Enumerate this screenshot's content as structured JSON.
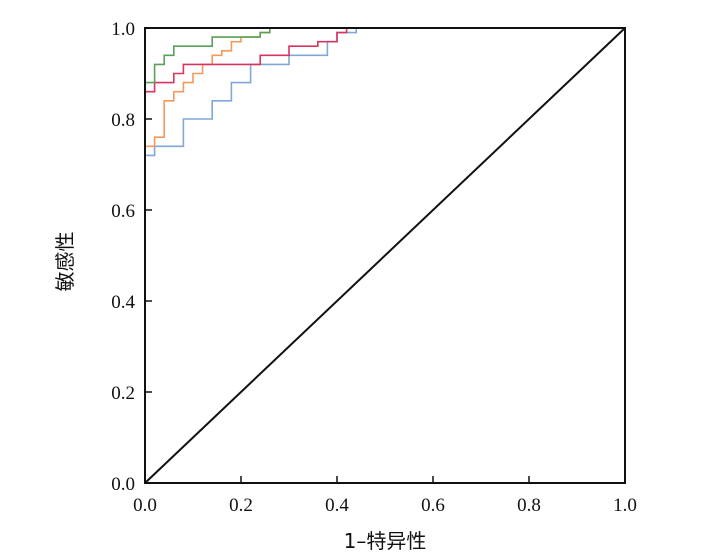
{
  "chart_data": {
    "type": "line",
    "title": "",
    "xlabel": "1–特异性",
    "ylabel": "敏感性",
    "xlim": [
      0,
      1
    ],
    "ylim": [
      0,
      1
    ],
    "xticks": [
      "0.0",
      "0.2",
      "0.4",
      "0.6",
      "0.8",
      "1.0"
    ],
    "yticks": [
      "0.0",
      "0.2",
      "0.4",
      "0.6",
      "0.8",
      "1.0"
    ],
    "grid": false,
    "legend": "none",
    "series": [
      {
        "color": "#7fa8d8",
        "x": [
          0,
          0,
          0.02,
          0.02,
          0.08,
          0.08,
          0.14,
          0.14,
          0.18,
          0.18,
          0.22,
          0.22,
          0.3,
          0.3,
          0.38,
          0.38,
          0.4,
          0.4,
          0.44,
          0.44
        ],
        "y": [
          0,
          0.72,
          0.72,
          0.74,
          0.74,
          0.8,
          0.8,
          0.84,
          0.84,
          0.88,
          0.88,
          0.92,
          0.92,
          0.94,
          0.94,
          0.97,
          0.97,
          0.99,
          0.99,
          1.0
        ]
      },
      {
        "color": "#f29a5c",
        "x": [
          0,
          0,
          0.02,
          0.02,
          0.04,
          0.04,
          0.06,
          0.06,
          0.08,
          0.08,
          0.1,
          0.1,
          0.12,
          0.12,
          0.14,
          0.14,
          0.16,
          0.16,
          0.18,
          0.18,
          0.2,
          0.2,
          0.24,
          0.24,
          0.26,
          0.26
        ],
        "y": [
          0,
          0.74,
          0.74,
          0.76,
          0.76,
          0.84,
          0.84,
          0.86,
          0.86,
          0.88,
          0.88,
          0.9,
          0.9,
          0.92,
          0.92,
          0.94,
          0.94,
          0.95,
          0.95,
          0.97,
          0.97,
          0.98,
          0.98,
          0.99,
          0.99,
          1.0
        ]
      },
      {
        "color": "#d9345e",
        "x": [
          0,
          0,
          0.02,
          0.02,
          0.06,
          0.06,
          0.08,
          0.08,
          0.12,
          0.12,
          0.24,
          0.24,
          0.3,
          0.3,
          0.36,
          0.36,
          0.4,
          0.4,
          0.42,
          0.42
        ],
        "y": [
          0,
          0.86,
          0.86,
          0.88,
          0.88,
          0.9,
          0.9,
          0.92,
          0.92,
          0.92,
          0.92,
          0.94,
          0.94,
          0.96,
          0.96,
          0.97,
          0.97,
          0.99,
          0.99,
          1.0
        ]
      },
      {
        "color": "#5aa05a",
        "x": [
          0,
          0,
          0.02,
          0.02,
          0.04,
          0.04,
          0.06,
          0.06,
          0.14,
          0.14,
          0.24,
          0.24,
          0.26,
          0.26
        ],
        "y": [
          0,
          0.88,
          0.88,
          0.92,
          0.92,
          0.94,
          0.94,
          0.96,
          0.96,
          0.98,
          0.98,
          0.99,
          0.99,
          1.0
        ]
      },
      {
        "color": "#111111",
        "x": [
          0,
          1
        ],
        "y": [
          0,
          1
        ]
      }
    ]
  }
}
